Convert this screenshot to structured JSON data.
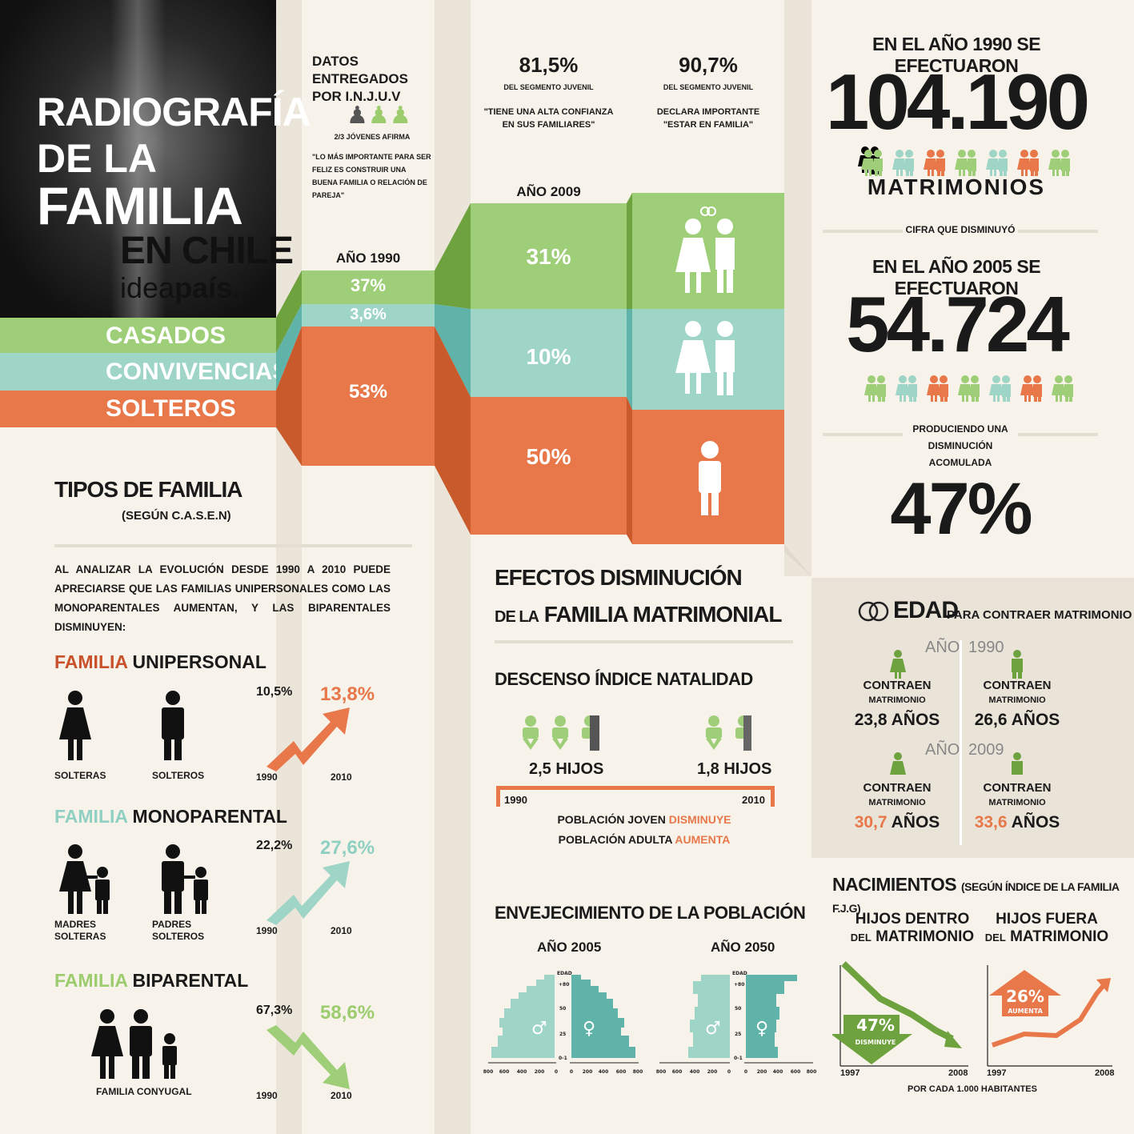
{
  "colors": {
    "green": "#9fce78",
    "teal": "#9fd5c6",
    "orange": "#e8774a",
    "cream": "#f8f3ea",
    "dark": "#1a1a1a"
  },
  "title": {
    "line1": "RADIOGRAFÍA",
    "line2": "DE LA",
    "line3": "FAMILIA",
    "line4": "EN CHILE",
    "brand_a": "idea",
    "brand_b": "país."
  },
  "legend": {
    "casados": "CASADOS",
    "convivencias": "CONVIVENCIAS",
    "solteros": "SOLTEROS"
  },
  "injuv": {
    "heading": "DATOS ENTREGADOS POR  I.N.J.U.V",
    "sub": "2/3 JÓVENES AFIRMA",
    "quote": "\"LO MÁS IMPORTANTE PARA SER FELIZ ES CONSTRUIR UNA BUENA FAMILIA O RELACIÓN DE PAREJA\""
  },
  "stat1": {
    "pct": "81,5%",
    "sub": "DEL SEGMENTO JUVENIL",
    "quote": "\"TIENE UNA ALTA CONFIANZA EN SUS FAMILIARES\""
  },
  "stat2": {
    "pct": "90,7%",
    "sub": "DEL SEGMENTO JUVENIL",
    "quote": "DECLARA IMPORTANTE \"ESTAR EN FAMILIA\""
  },
  "year1990": {
    "label": "AÑO 1990",
    "casados": "37%",
    "convivencias": "3,6%",
    "solteros": "53%"
  },
  "year2009": {
    "label": "AÑO 2009",
    "casados": "31%",
    "convivencias": "10%",
    "solteros": "50%"
  },
  "tipos": {
    "title": "TIPOS DE FAMILIA",
    "sub": "(SEGÚN C.A.S.E.N)",
    "intro": "AL ANALIZAR LA EVOLUCIÓN DESDE 1990 A 2010 PUEDE APRECIARSE QUE LAS FAMILIAS UNIPERSONALES COMO LAS MONOPARENTALES AUMENTAN, Y LAS BIPARENTALES DISMINUYEN:"
  },
  "unipersonal": {
    "word": "FAMILIA",
    "name": "UNIPERSONAL",
    "fig1": "SOLTERAS",
    "fig2": "SOLTEROS",
    "v1990": "10,5%",
    "v2010": "13,8%",
    "y1": "1990",
    "y2": "2010"
  },
  "monoparental": {
    "word": "FAMILIA",
    "name": "MONOPARENTAL",
    "fig1a": "MADRES",
    "fig1b": "SOLTERAS",
    "fig2a": "PADRES",
    "fig2b": "SOLTEROS",
    "v1990": "22,2%",
    "v2010": "27,6%",
    "y1": "1990",
    "y2": "2010"
  },
  "biparental": {
    "word": "FAMILIA",
    "name": "BIPARENTAL",
    "fig": "FAMILIA CONYUGAL",
    "v1990": "67,3%",
    "v2010": "58,6%",
    "y1": "1990",
    "y2": "2010"
  },
  "efectos": {
    "line1a": "EFECTOS DISMINUCIÓN",
    "line2a": "DE LA",
    "line2b": "FAMILIA MATRIMONIAL"
  },
  "natalidad": {
    "title": "DESCENSO ÍNDICE NATALIDAD",
    "h1": "2,5 HIJOS",
    "h2": "1,8 HIJOS",
    "y1": "1990",
    "y2": "2010",
    "l1a": "POBLACIÓN JOVEN",
    "l1b": "DISMINUYE",
    "l2a": "POBLACIÓN ADULTA",
    "l2b": "AUMENTA"
  },
  "envejecimiento": {
    "title": "ENVEJECIMIENTO DE LA POBLACIÓN",
    "y1": "AÑO 2005",
    "y2": "AÑO 2050",
    "edad": "EDAD",
    "ages": [
      "+80",
      "50",
      "25",
      "0-1"
    ],
    "left_ticks": [
      "800",
      "600",
      "400",
      "200",
      "0"
    ],
    "right_ticks": [
      "0",
      "200",
      "400",
      "600",
      "800"
    ]
  },
  "matrimonios": {
    "h1": "EN EL AÑO 1990 SE EFECTUARON",
    "n1": "104.190",
    "label": "MATRIMONIOS",
    "cifra": "CIFRA QUE DISMINUYÓ",
    "h2": "EN EL AÑO 2005 SE EFECTUARON",
    "n2": "54.724",
    "prod1": "PRODUCIENDO UNA",
    "prod2": "DISMINUCIÓN ACOMULADA",
    "pct": "47%"
  },
  "edad": {
    "title": "EDAD",
    "sub": "PARA CONTRAER MATRIMONIO",
    "ano": "AÑO",
    "y1": "1990",
    "y2": "2009",
    "contraen": "CONTRAEN",
    "matrimonio": "MATRIMONIO",
    "a1": "23,8 AÑOS",
    "a2": "26,6 AÑOS",
    "a3": "30,7",
    "a4": "33,6",
    "anos": "AÑOS"
  },
  "nacimientos": {
    "title": "NACIMIENTOS",
    "sub": "(SEGÚN ÍNDICE DE LA FAMILIA F.J.G)",
    "c1a": "HIJOS DENTRO",
    "c1b": "DEL",
    "c1c": "MATRIMONIO",
    "c2a": "HIJOS FUERA",
    "c2b": "DEL",
    "c2c": "MATRIMONIO",
    "p1": "47%",
    "d1": "DISMINUYE",
    "p2": "26%",
    "d2": "AUMENTA",
    "y1": "1997",
    "y2": "2008",
    "footer": "POR CADA 1.000 HABITANTES"
  }
}
